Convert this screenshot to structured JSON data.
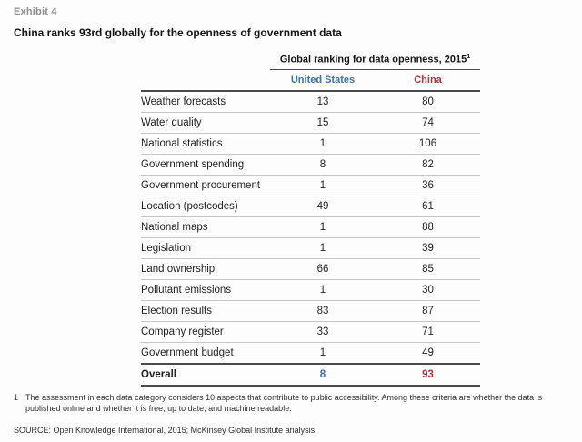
{
  "exhibit": {
    "label": "Exhibit 4"
  },
  "title": "China ranks 93rd globally for the openness of government data",
  "table": {
    "group_header": "Global ranking for data openness, 2015",
    "group_header_footnote_marker": "1",
    "columns": {
      "us": "United States",
      "china": "China"
    },
    "rows": [
      {
        "category": "Weather forecasts",
        "us": "13",
        "china": "80"
      },
      {
        "category": "Water quality",
        "us": "15",
        "china": "74"
      },
      {
        "category": "National statistics",
        "us": "1",
        "china": "106"
      },
      {
        "category": "Government spending",
        "us": "8",
        "china": "82"
      },
      {
        "category": "Government procurement",
        "us": "1",
        "china": "36"
      },
      {
        "category": "Location (postcodes)",
        "us": "49",
        "china": "61"
      },
      {
        "category": "National maps",
        "us": "1",
        "china": "88"
      },
      {
        "category": "Legislation",
        "us": "1",
        "china": "39"
      },
      {
        "category": "Land ownership",
        "us": "66",
        "china": "85"
      },
      {
        "category": "Pollutant emissions",
        "us": "1",
        "china": "30"
      },
      {
        "category": "Election results",
        "us": "83",
        "china": "87"
      },
      {
        "category": "Company register",
        "us": "33",
        "china": "71"
      },
      {
        "category": "Government budget",
        "us": "1",
        "china": "49"
      }
    ],
    "overall": {
      "label": "Overall",
      "us": "8",
      "china": "93"
    }
  },
  "footnote": {
    "marker": "1",
    "text": "The assessment in each data category considers 10 aspects that contribute to public accessibility. Among these criteria are whether the data is published online and whether it is free, up to date, and machine readable."
  },
  "source": "SOURCE: Open Knowledge International, 2015; McKinsey Global Institute analysis",
  "colors": {
    "us_accent": "#3f6f9f",
    "china_accent": "#ac3440",
    "rule_dark": "#4a4a4a",
    "rule_light": "#c6c6c6"
  },
  "chart_data": {
    "type": "table",
    "title": "China ranks 93rd globally for the openness of government data",
    "subtitle": "Global ranking for data openness, 2015",
    "columns": [
      "Category",
      "United States",
      "China"
    ],
    "categories": [
      "Weather forecasts",
      "Water quality",
      "National statistics",
      "Government spending",
      "Government procurement",
      "Location (postcodes)",
      "National maps",
      "Legislation",
      "Land ownership",
      "Pollutant emissions",
      "Election results",
      "Company register",
      "Government budget"
    ],
    "series": [
      {
        "name": "United States",
        "values": [
          13,
          15,
          1,
          8,
          1,
          49,
          1,
          1,
          66,
          1,
          83,
          33,
          1
        ]
      },
      {
        "name": "China",
        "values": [
          80,
          74,
          106,
          82,
          36,
          61,
          88,
          39,
          85,
          30,
          87,
          71,
          49
        ]
      }
    ],
    "overall": {
      "United States": 8,
      "China": 93
    },
    "legend_position": "top",
    "grid": "horizontal-rules"
  }
}
